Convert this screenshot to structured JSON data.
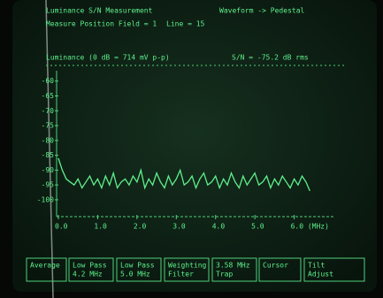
{
  "screen": {
    "title": "Luminance S/N Measurement",
    "mode": "Waveform -> Pedestal",
    "position": "Measure Position Field = 1",
    "line": "Line = 15",
    "reference": "Luminance (0 dB = 714 mV p-p)",
    "result": "S/N = -75.2 dB rms",
    "softkeys": [
      [
        "Average"
      ],
      [
        "Low Pass",
        "4.2 MHz"
      ],
      [
        "Low Pass",
        "5.0 MHz"
      ],
      [
        "Weighting",
        "Filter"
      ],
      [
        "3.58 MHz",
        "Trap"
      ],
      [
        "Cursor"
      ],
      [
        "Tilt",
        "Adjust"
      ]
    ]
  },
  "chart_data": {
    "type": "line",
    "x": [
      0.0,
      0.1,
      0.2,
      0.3,
      0.4,
      0.5,
      0.6,
      0.7,
      0.8,
      0.9,
      1.0,
      1.1,
      1.2,
      1.3,
      1.4,
      1.5,
      1.6,
      1.7,
      1.8,
      1.9,
      2.0,
      2.1,
      2.2,
      2.3,
      2.4,
      2.5,
      2.6,
      2.7,
      2.8,
      2.9,
      3.0,
      3.1,
      3.2,
      3.3,
      3.4,
      3.5,
      3.6,
      3.7,
      3.8,
      3.9,
      4.0,
      4.1,
      4.2,
      4.3,
      4.4,
      4.5,
      4.6,
      4.7,
      4.8,
      4.9,
      5.0,
      5.1,
      5.2,
      5.3,
      5.4,
      5.5,
      5.6,
      5.7,
      5.8,
      5.9,
      6.0,
      6.1,
      6.2,
      6.3,
      6.4
    ],
    "series": [
      {
        "color": "#5ef08c",
        "values": [
          -86,
          -90,
          -93,
          -94,
          -95,
          -93,
          -96,
          -94,
          -92,
          -95,
          -93,
          -96,
          -92,
          -95,
          -91,
          -96,
          -94,
          -93,
          -95,
          -92,
          -94,
          -90,
          -96,
          -93,
          -95,
          -91,
          -94,
          -96,
          -92,
          -95,
          -93,
          -90,
          -95,
          -94,
          -92,
          -96,
          -93,
          -91,
          -95,
          -94,
          -92,
          -96,
          -93,
          -95,
          -91,
          -94,
          -96,
          -92,
          -95,
          -93,
          -91,
          -95,
          -94,
          -92,
          -96,
          -93,
          -95,
          -92,
          -94,
          -96,
          -93,
          -95,
          -92,
          -94,
          -97
        ]
      }
    ],
    "xlim": [
      0,
      7
    ],
    "xticks": [
      {
        "value": 0,
        "label": "0.0"
      },
      {
        "value": 1,
        "label": "1.0"
      },
      {
        "value": 2,
        "label": "2.0"
      },
      {
        "value": 3,
        "label": "3.0"
      },
      {
        "value": 4,
        "label": "4.0"
      },
      {
        "value": 5,
        "label": "5.0"
      },
      {
        "value": 6,
        "label": "6.0 (MHz)"
      }
    ],
    "ylim": [
      -103,
      -58
    ],
    "yticks": [
      -60,
      -65,
      -70,
      -75,
      -80,
      -85,
      -90,
      -95,
      -100
    ]
  }
}
